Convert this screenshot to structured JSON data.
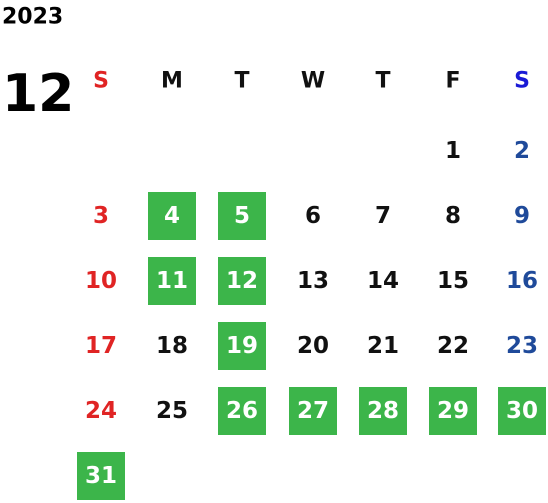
{
  "year": "2023",
  "month": "12",
  "weekdays": [
    "S",
    "M",
    "T",
    "W",
    "T",
    "F",
    "S"
  ],
  "colors": {
    "default": "#111111",
    "sunday": "#e02424",
    "saturday": "#1f4a9a",
    "sunday_header": "#e02424",
    "saturday_header": "#1a1ad6",
    "highlight": "#3cb54a",
    "highlight_text": "#ffffff"
  },
  "weeks": [
    [
      null,
      null,
      null,
      null,
      null,
      {
        "day": "1",
        "highlighted": false
      },
      {
        "day": "2",
        "highlighted": false
      }
    ],
    [
      {
        "day": "3",
        "highlighted": false
      },
      {
        "day": "4",
        "highlighted": true
      },
      {
        "day": "5",
        "highlighted": true
      },
      {
        "day": "6",
        "highlighted": false
      },
      {
        "day": "7",
        "highlighted": false
      },
      {
        "day": "8",
        "highlighted": false
      },
      {
        "day": "9",
        "highlighted": false
      }
    ],
    [
      {
        "day": "10",
        "highlighted": false
      },
      {
        "day": "11",
        "highlighted": true
      },
      {
        "day": "12",
        "highlighted": true
      },
      {
        "day": "13",
        "highlighted": false
      },
      {
        "day": "14",
        "highlighted": false
      },
      {
        "day": "15",
        "highlighted": false
      },
      {
        "day": "16",
        "highlighted": false
      }
    ],
    [
      {
        "day": "17",
        "highlighted": false
      },
      {
        "day": "18",
        "highlighted": false
      },
      {
        "day": "19",
        "highlighted": true
      },
      {
        "day": "20",
        "highlighted": false
      },
      {
        "day": "21",
        "highlighted": false
      },
      {
        "day": "22",
        "highlighted": false
      },
      {
        "day": "23",
        "highlighted": false
      }
    ],
    [
      {
        "day": "24",
        "highlighted": false
      },
      {
        "day": "25",
        "highlighted": false
      },
      {
        "day": "26",
        "highlighted": true
      },
      {
        "day": "27",
        "highlighted": true
      },
      {
        "day": "28",
        "highlighted": true
      },
      {
        "day": "29",
        "highlighted": true
      },
      {
        "day": "30",
        "highlighted": true
      }
    ],
    [
      {
        "day": "31",
        "highlighted": true
      }
    ]
  ]
}
